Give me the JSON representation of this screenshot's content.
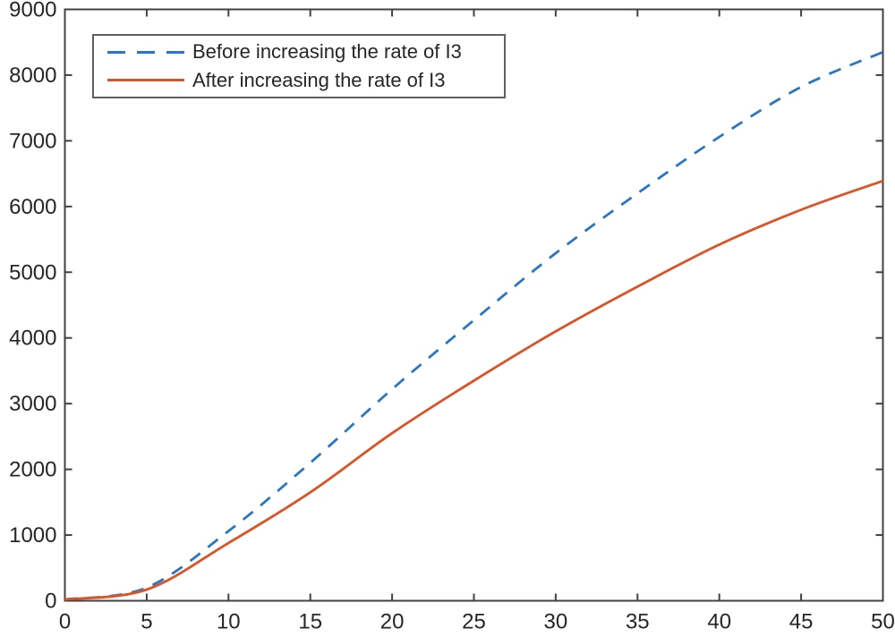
{
  "chart_data": {
    "type": "line",
    "title": "",
    "xlabel": "",
    "ylabel": "",
    "xlim": [
      0,
      50
    ],
    "ylim": [
      0,
      9000
    ],
    "x_ticks": [
      0,
      5,
      10,
      15,
      20,
      25,
      30,
      35,
      40,
      45,
      50
    ],
    "y_ticks": [
      0,
      1000,
      2000,
      3000,
      4000,
      5000,
      6000,
      7000,
      8000,
      9000
    ],
    "grid": false,
    "legend_position": "top-left",
    "x": [
      0,
      5,
      10,
      15,
      20,
      25,
      30,
      35,
      40,
      45,
      50
    ],
    "series": [
      {
        "name": "Before increasing the rate of I3",
        "color": "#2b76c4",
        "line_style": "dashed",
        "values": [
          20,
          200,
          1060,
          2100,
          3220,
          4270,
          5290,
          6200,
          7060,
          7820,
          8350
        ]
      },
      {
        "name": "After increasing the rate of I3",
        "color": "#db5427",
        "line_style": "solid",
        "values": [
          20,
          170,
          880,
          1650,
          2550,
          3350,
          4100,
          4780,
          5420,
          5950,
          6390
        ]
      }
    ],
    "axis_color": "#424242",
    "tick_label_color": "#262626",
    "background": "#ffffff"
  }
}
